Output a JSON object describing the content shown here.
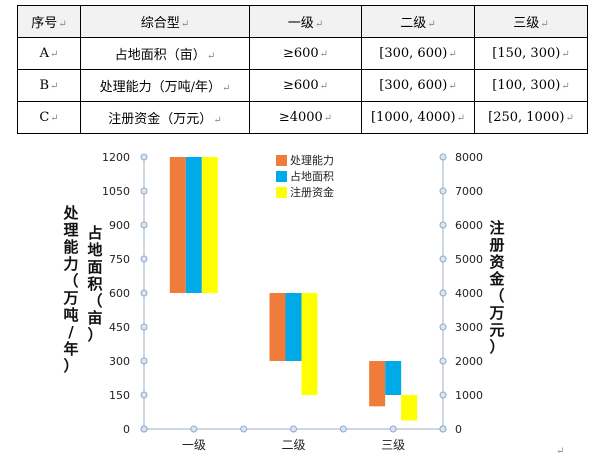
{
  "table": {
    "mark": "↵",
    "header": [
      "序号",
      "综合型",
      "一级",
      "二级",
      "三级"
    ],
    "rows": [
      [
        "A",
        "占地面积（亩）",
        "≥600",
        "[300, 600)",
        "[150, 300)"
      ],
      [
        "B",
        "处理能力（万吨/年）",
        "≥600",
        "[300, 600)",
        "[100, 300)"
      ],
      [
        "C",
        "注册资金（万元）",
        "≥4000",
        "[1000, 4000)",
        "[250, 1000)"
      ]
    ]
  },
  "chart_data": {
    "type": "bar",
    "subtype": "floating-range",
    "categories": [
      "一级",
      "二级",
      "三级"
    ],
    "series": [
      {
        "name": "处理能力",
        "axis": "left",
        "color": "#f07c3c",
        "ranges": [
          [
            600,
            1200
          ],
          [
            300,
            600
          ],
          [
            100,
            300
          ]
        ]
      },
      {
        "name": "占地面积",
        "axis": "left",
        "color": "#00a9e8",
        "ranges": [
          [
            600,
            1200
          ],
          [
            300,
            600
          ],
          [
            150,
            300
          ]
        ]
      },
      {
        "name": "注册资金",
        "axis": "right",
        "color": "#ffff00",
        "ranges": [
          [
            4000,
            8000
          ],
          [
            1000,
            4000
          ],
          [
            250,
            1000
          ]
        ]
      }
    ],
    "ylabel_left": "处理能力（万吨/年）",
    "ylabel_left2": "占地面积（亩）",
    "ylabel_right": "注册资金（万元）",
    "y_left": {
      "min": 0,
      "max": 1200,
      "ticks": [
        0,
        150,
        300,
        450,
        600,
        750,
        900,
        1050,
        1200
      ]
    },
    "y_right": {
      "min": 0,
      "max": 8000,
      "ticks": [
        0,
        1000,
        2000,
        3000,
        4000,
        5000,
        6000,
        7000,
        8000
      ]
    },
    "legend_position": "top-center",
    "grid": false
  }
}
